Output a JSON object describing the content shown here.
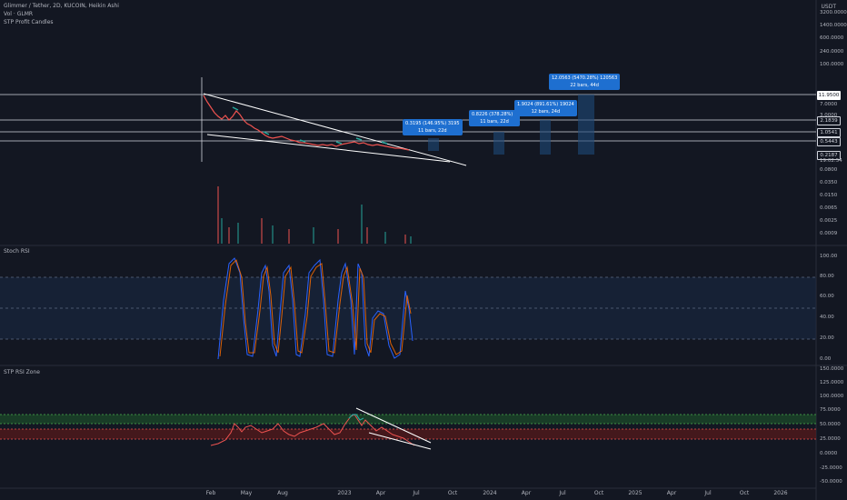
{
  "header": {
    "symbol_line": "Glimmer / Tether, 2D, KUCOIN, Heikin Ashi",
    "vol_line": "Vol · GLMR",
    "indicator_line": "STP Profit Candles",
    "currency": "USDT"
  },
  "price_axis": [
    "3200.0000",
    "1400.0000",
    "600.0000",
    "240.0000",
    "100.0000",
    "7.0000",
    "3.0000",
    "0.0800",
    "0.0350",
    "0.0150",
    "0.0065",
    "0.0025",
    "0.0009"
  ],
  "price_tags": {
    "tag1": "11.9500",
    "tag2": "2.1839",
    "tag3": "1.0541",
    "tag4": "0.5443",
    "tag5": "0.2187",
    "countdown": "19:02:54"
  },
  "tooltips": [
    {
      "line1": "0.3195 (146.95%) 3195",
      "line2": "11 bars, 22d"
    },
    {
      "line1": "0.8226 (378.28%) 8",
      "line2": "11 bars, 22d"
    },
    {
      "line1": "1.9024 (891.61%) 19024",
      "line2": "12 bars, 24d"
    },
    {
      "line1": "12.0563 (5470.28%) 120563",
      "line2": "22 bars, 44d"
    }
  ],
  "stoch_panel": {
    "title": "Stoch RSI",
    "axis": [
      "100.00",
      "80.00",
      "60.00",
      "40.00",
      "20.00",
      "0.00"
    ]
  },
  "rsi_panel": {
    "title": "STP RSI Zone",
    "axis": [
      "150.0000",
      "125.0000",
      "100.0000",
      "75.0000",
      "50.0000",
      "25.0000",
      "0.0000",
      "-25.0000",
      "-50.0000"
    ]
  },
  "time_axis": [
    "Feb",
    "May",
    "Aug",
    "2023",
    "Apr",
    "Jul",
    "Oct",
    "2024",
    "Apr",
    "Jul",
    "Oct",
    "2025",
    "Apr",
    "Jul",
    "Oct",
    "2026"
  ],
  "colors": {
    "background": "#131722",
    "text": "#b2b5be",
    "tooltip": "#1e6fd0",
    "bull": "#26a69a",
    "bear": "#ef5350",
    "stoch_k": "#2962ff",
    "stoch_d": "#ff6d00",
    "zone_green": "#2e7d32",
    "zone_red": "#8b1a1a"
  }
}
